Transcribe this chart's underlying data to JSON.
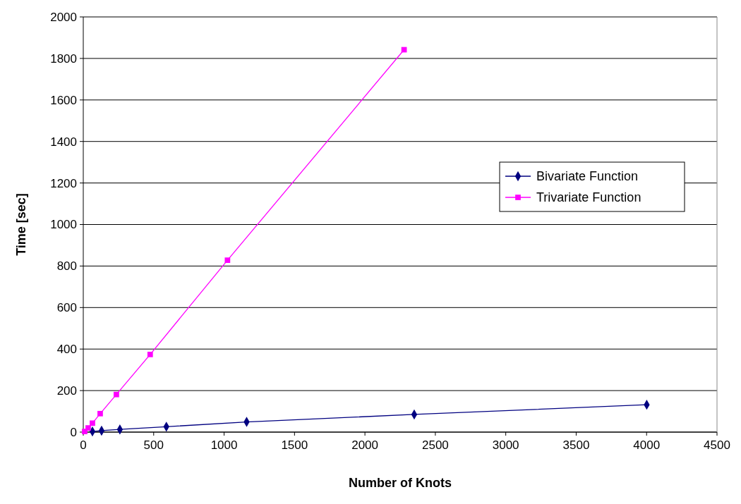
{
  "chart_data": {
    "type": "line",
    "xlabel": "Number of Knots",
    "ylabel": "Time [sec]",
    "xlim": [
      0,
      4500
    ],
    "xticks": [
      0,
      500,
      1000,
      1500,
      2000,
      2500,
      3000,
      3500,
      4000,
      4500
    ],
    "ylim": [
      0,
      2000
    ],
    "yticks": [
      0,
      200,
      400,
      600,
      800,
      1000,
      1200,
      1400,
      1600,
      1800,
      2000
    ],
    "grid": "y",
    "legend": "right",
    "series": [
      {
        "name": "Bivariate Function",
        "color": "#000080",
        "marker": "diamond",
        "x": [
          65,
          130,
          260,
          590,
          1160,
          2350,
          4001
        ],
        "values": [
          3,
          7,
          13,
          26,
          49,
          85,
          132
        ]
      },
      {
        "name": "Trivariate Function",
        "color": "#ff00ff",
        "marker": "square",
        "x": [
          10,
          35,
          65,
          120,
          235,
          475,
          1024,
          2278
        ],
        "values": [
          3,
          20,
          43,
          89,
          181,
          374,
          828,
          1842
        ]
      }
    ]
  }
}
